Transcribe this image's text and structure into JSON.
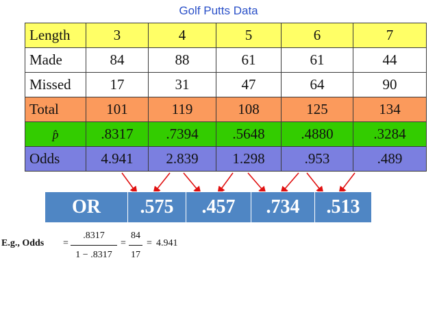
{
  "title": "Golf Putts Data",
  "table": {
    "rows": [
      {
        "label": "Length",
        "values": [
          "3",
          "4",
          "5",
          "6",
          "7"
        ]
      },
      {
        "label": "Made",
        "values": [
          "84",
          "88",
          "61",
          "61",
          "44"
        ]
      },
      {
        "label": "Missed",
        "values": [
          "17",
          "31",
          "47",
          "64",
          "90"
        ]
      },
      {
        "label": "Total",
        "values": [
          "101",
          "119",
          "108",
          "125",
          "134"
        ]
      },
      {
        "label": "p̂",
        "values": [
          ".8317",
          ".7394",
          ".5648",
          ".4880",
          ".3284"
        ]
      },
      {
        "label": "Odds",
        "values": [
          "4.941",
          "2.839",
          "1.298",
          ".953",
          ".489"
        ]
      }
    ]
  },
  "or_table": {
    "label": "OR",
    "values": [
      ".575",
      ".457",
      ".734",
      ".513"
    ]
  },
  "example": {
    "label": "E.g., Odds",
    "eq": "=",
    "num1": ".8317",
    "den1": "1 − .8317",
    "num2": "84",
    "den2": "17",
    "result": "4.941"
  },
  "colors": {
    "title": "#2a50c8",
    "length_row": "#ffff66",
    "total_row": "#fb9a5c",
    "p_row": "#33cc00",
    "odds_row": "#7b7fe0",
    "or_bar": "#4f86c4",
    "arrow": "#e01010"
  }
}
